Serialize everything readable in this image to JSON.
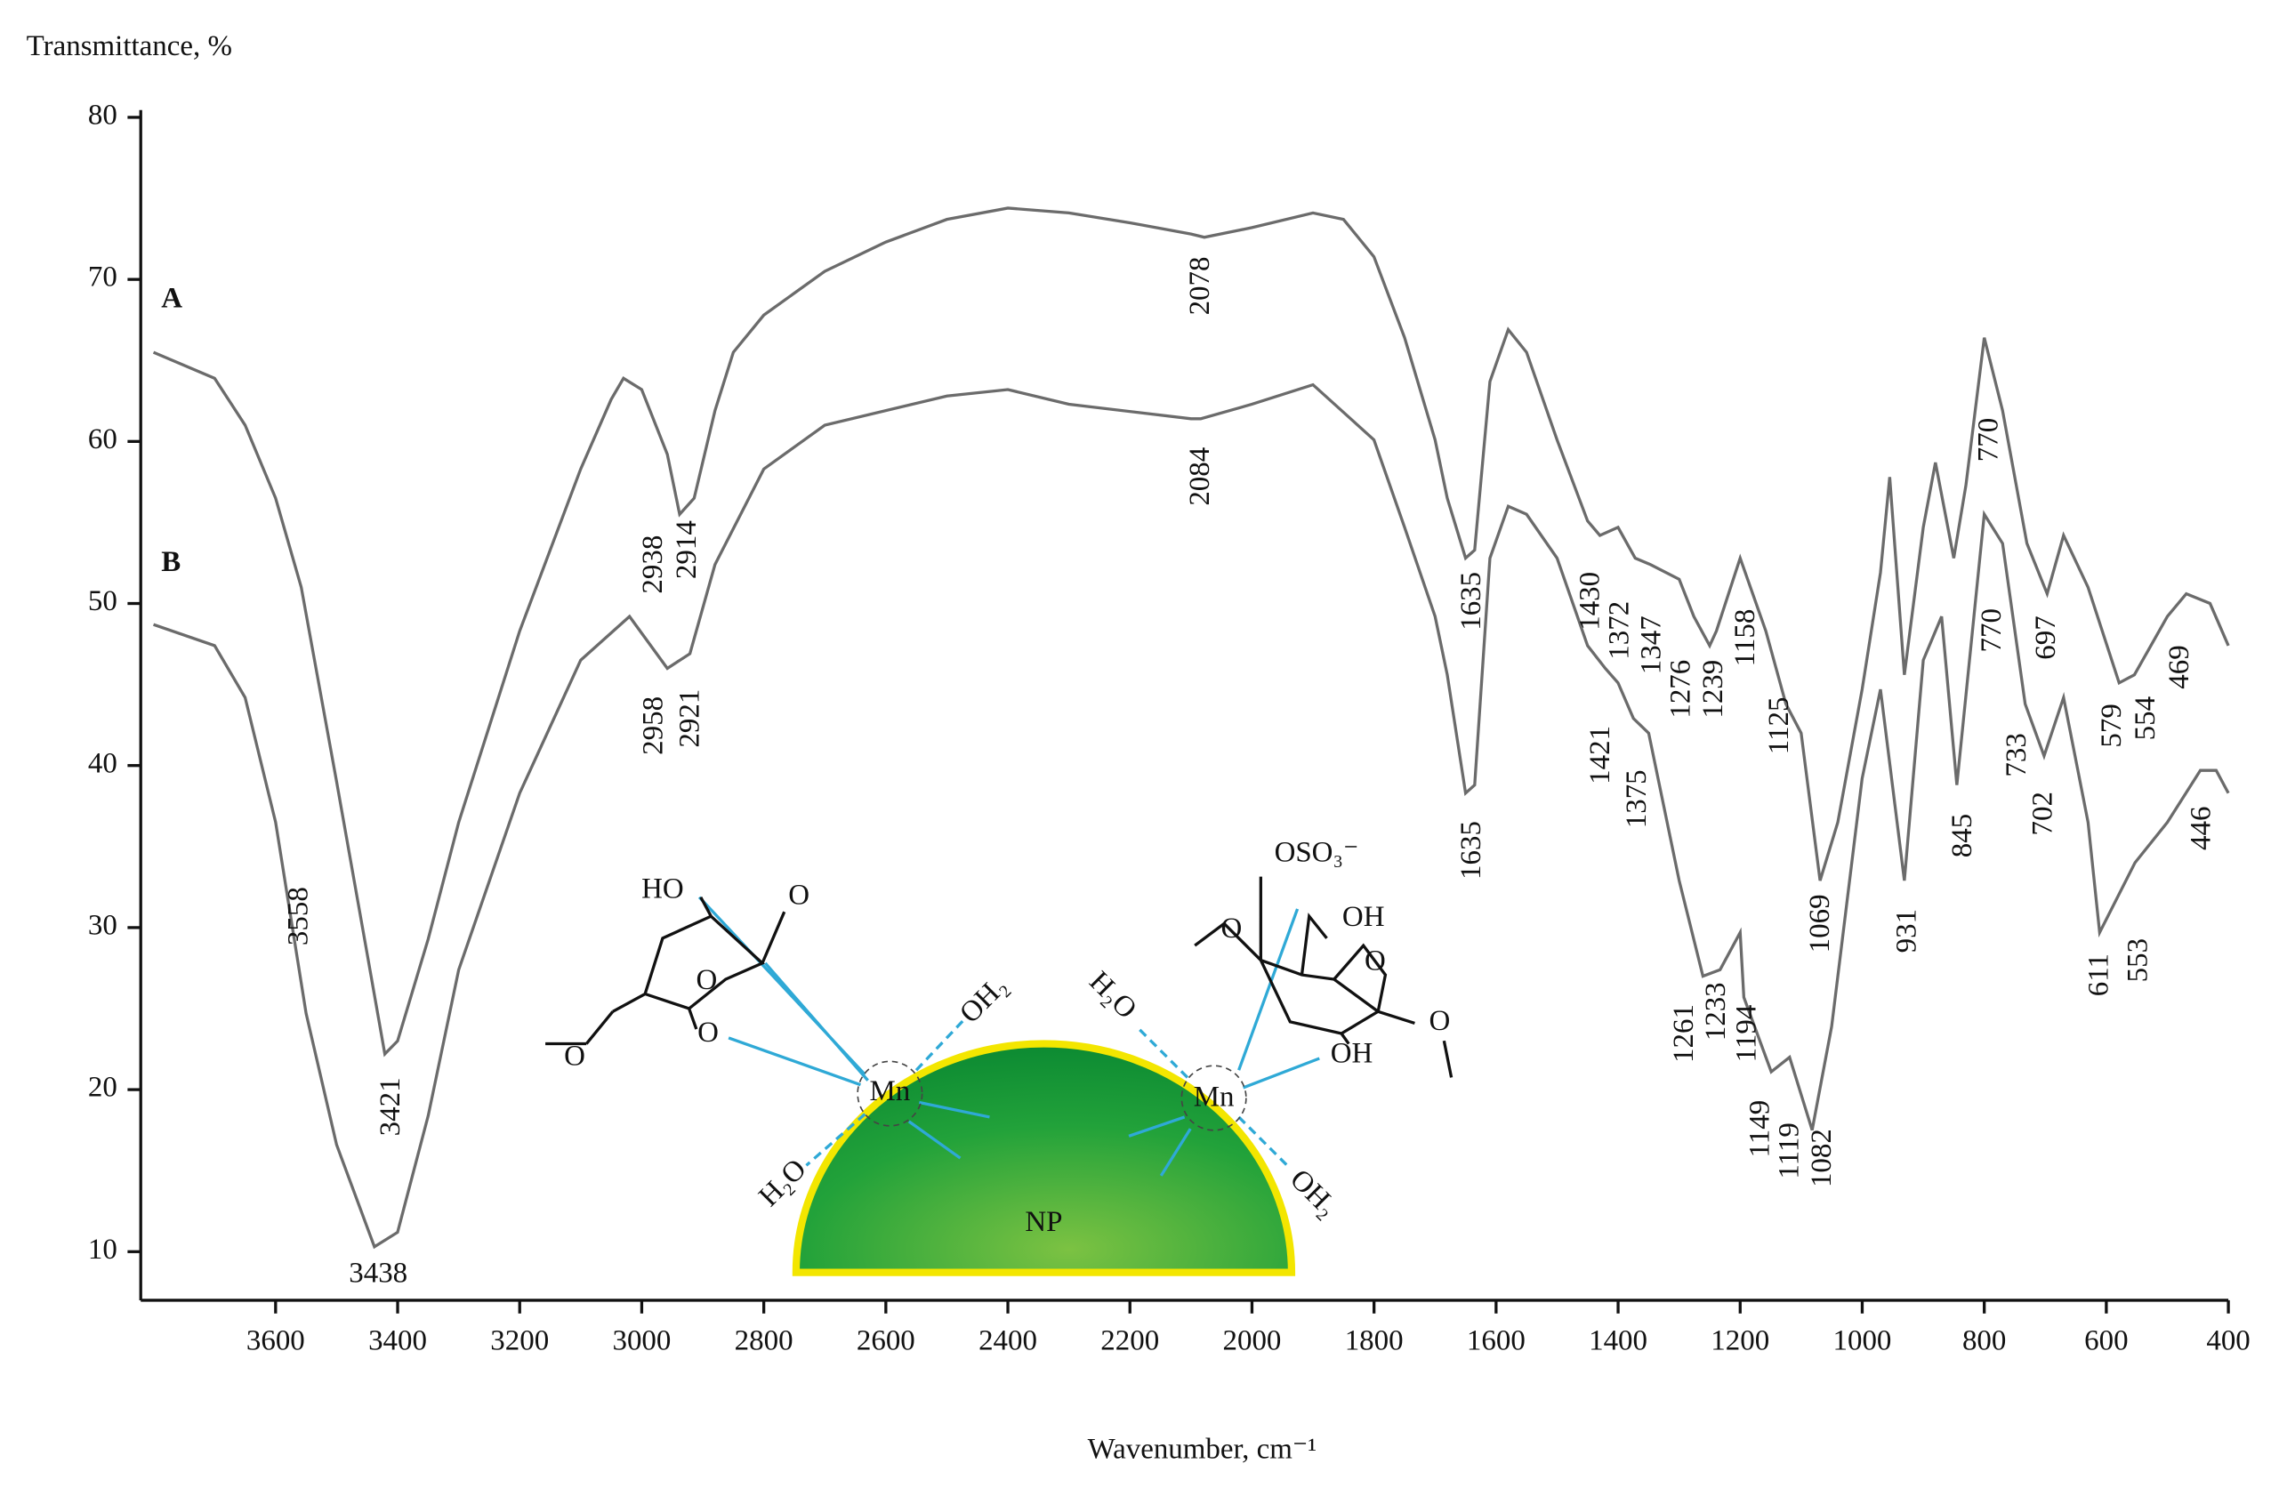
{
  "chart_data": {
    "type": "line",
    "title": "Transmittance, %",
    "x_label": "Wavenumber, cm⁻¹",
    "xlim": [
      3821,
      400
    ],
    "xticks": [
      3600,
      3400,
      3200,
      3000,
      2800,
      2600,
      2400,
      2200,
      2000,
      1800,
      1600,
      1400,
      1200,
      1000,
      800,
      600,
      400
    ],
    "ylim": [
      7,
      80
    ],
    "yticks": [
      10,
      20,
      30,
      40,
      50,
      60,
      70,
      80
    ],
    "color": "#6b6b6b",
    "series": [
      {
        "name": "A",
        "color": "#6b6b6b",
        "x": [
          3800,
          3700,
          3650,
          3600,
          3558,
          3500,
          3450,
          3421,
          3400,
          3350,
          3300,
          3200,
          3100,
          3050,
          3030,
          3000,
          2958,
          2938,
          2914,
          2880,
          2850,
          2800,
          2700,
          2600,
          2500,
          2400,
          2300,
          2200,
          2100,
          2078,
          2000,
          1900,
          1850,
          1800,
          1750,
          1700,
          1680,
          1650,
          1635,
          1610,
          1580,
          1550,
          1500,
          1450,
          1430,
          1400,
          1372,
          1347,
          1300,
          1276,
          1250,
          1239,
          1200,
          1158,
          1125,
          1100,
          1069,
          1040,
          1000,
          970,
          955,
          931,
          900,
          880,
          850,
          830,
          800,
          770,
          730,
          697,
          670,
          630,
          579,
          554,
          500,
          469,
          430,
          400
        ],
        "values": [
          65.5,
          63.9,
          61,
          56.5,
          51,
          39,
          28.4,
          22.2,
          23,
          29.3,
          36.5,
          48.3,
          58.3,
          62.6,
          63.9,
          63.2,
          59.2,
          55.5,
          56.5,
          61.9,
          65.5,
          67.8,
          70.5,
          72.3,
          73.7,
          74.4,
          74.1,
          73.5,
          72.8,
          72.6,
          73.2,
          74.1,
          73.7,
          71.4,
          66.4,
          60.1,
          56.5,
          52.8,
          53.3,
          63.7,
          66.9,
          65.5,
          60.1,
          55.1,
          54.2,
          54.7,
          52.8,
          52.4,
          51.5,
          49.2,
          47.4,
          48.3,
          52.8,
          48.3,
          43.8,
          42,
          32.9,
          36.5,
          44.7,
          51.9,
          57.8,
          45.6,
          54.7,
          58.7,
          52.8,
          57.3,
          66.4,
          61.9,
          53.7,
          50.6,
          54.2,
          51,
          45.1,
          45.6,
          49.2,
          50.6,
          50,
          47.4
        ]
      },
      {
        "name": "B",
        "color": "#6b6b6b",
        "x": [
          3800,
          3700,
          3650,
          3600,
          3550,
          3500,
          3438,
          3400,
          3350,
          3300,
          3200,
          3100,
          3020,
          2958,
          2921,
          2880,
          2800,
          2700,
          2500,
          2400,
          2300,
          2100,
          2084,
          2000,
          1900,
          1800,
          1750,
          1700,
          1680,
          1650,
          1635,
          1610,
          1580,
          1550,
          1500,
          1450,
          1421,
          1400,
          1375,
          1350,
          1300,
          1261,
          1233,
          1200,
          1194,
          1149,
          1119,
          1082,
          1050,
          1000,
          970,
          931,
          900,
          870,
          845,
          800,
          770,
          733,
          702,
          670,
          630,
          611,
          553,
          500,
          446,
          420,
          400
        ],
        "values": [
          48.7,
          47.4,
          44.2,
          36.5,
          24.7,
          16.6,
          10.3,
          11.2,
          18.4,
          27.4,
          38.3,
          46.5,
          49.2,
          46,
          46.9,
          52.4,
          58.3,
          61,
          62.8,
          63.2,
          62.3,
          61.4,
          61.4,
          62.3,
          63.5,
          60.1,
          54.7,
          49.2,
          45.6,
          38.3,
          38.8,
          52.8,
          56,
          55.5,
          52.8,
          47.4,
          46,
          45.1,
          42.9,
          42,
          32.9,
          27,
          27.4,
          29.7,
          25.7,
          21.1,
          22,
          17.5,
          23.9,
          39.2,
          44.7,
          32.9,
          46.5,
          49.2,
          38.8,
          55.5,
          53.7,
          43.8,
          40.6,
          44.2,
          36.5,
          29.7,
          34,
          36.5,
          39.7,
          39.7,
          38.3
        ]
      }
    ],
    "annotations": [
      "3558",
      "3421",
      "3438",
      "2938",
      "2914",
      "2958",
      "2921",
      "2078",
      "2084",
      "1635",
      "1635",
      "1430",
      "1372",
      "1347",
      "1421",
      "1375",
      "1276",
      "1239",
      "1158",
      "1125",
      "1069",
      "1261",
      "1233",
      "1194",
      "1149",
      "1119",
      "1082",
      "931",
      "845",
      "770",
      "770",
      "697",
      "733",
      "702",
      "611",
      "553",
      "579",
      "554",
      "469",
      "446"
    ],
    "inset": {
      "labels": [
        "HO",
        "O",
        "O",
        "O",
        "O",
        "Mn",
        "OH₂",
        "H₂O",
        "NP",
        "OSO₃⁻",
        "OH",
        "O",
        "O",
        "O",
        "OH",
        "H₂O",
        "Mn",
        "OH₂",
        "O"
      ]
    }
  }
}
